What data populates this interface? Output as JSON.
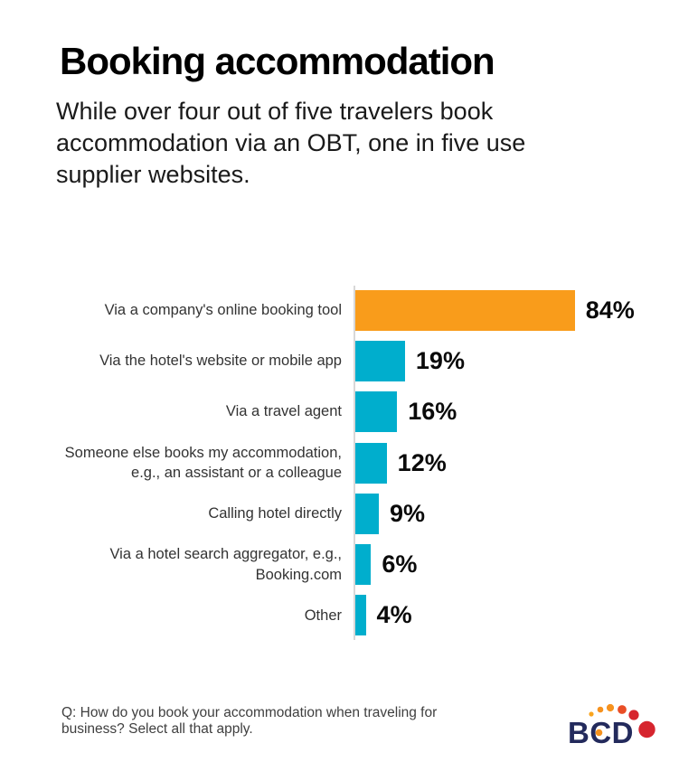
{
  "header": {
    "title": "Booking accommodation",
    "subtitle": "While over four out of five travelers book\naccommodation via an OBT, one in five use\nsupplier websites."
  },
  "chart_data": {
    "type": "bar",
    "orientation": "horizontal",
    "title": "Booking accommodation",
    "categories": [
      "Via a company's online booking tool",
      "Via the hotel's website or mobile app",
      "Via a travel agent",
      "Someone else books my accommodation,\ne.g., an assistant or a colleague",
      "Calling hotel directly",
      "Via a hotel search aggregator, e.g.,\nBooking.com",
      "Other"
    ],
    "values": [
      84,
      19,
      16,
      12,
      9,
      6,
      4
    ],
    "labels": [
      "84%",
      "19%",
      "16%",
      "12%",
      "9%",
      "6%",
      "4%"
    ],
    "xlim": [
      0,
      100
    ],
    "gridlines": false,
    "legend": false,
    "highlight_index": 0,
    "colors": {
      "highlight": "#F99C1B",
      "default": "#00AECD",
      "axis_line": "#D8D8D8",
      "value_text": "#0A0A0A",
      "label_text": "#333333"
    }
  },
  "footer": {
    "question": "Q: How do you book your accommodation when traveling for\nbusiness? Select all that apply."
  },
  "logo": {
    "text": "BCD",
    "navy": "#232A5C",
    "orange": "#F6921E",
    "light_orange": "#F9A51F",
    "orange_red": "#E94E26",
    "red": "#D6252E"
  }
}
